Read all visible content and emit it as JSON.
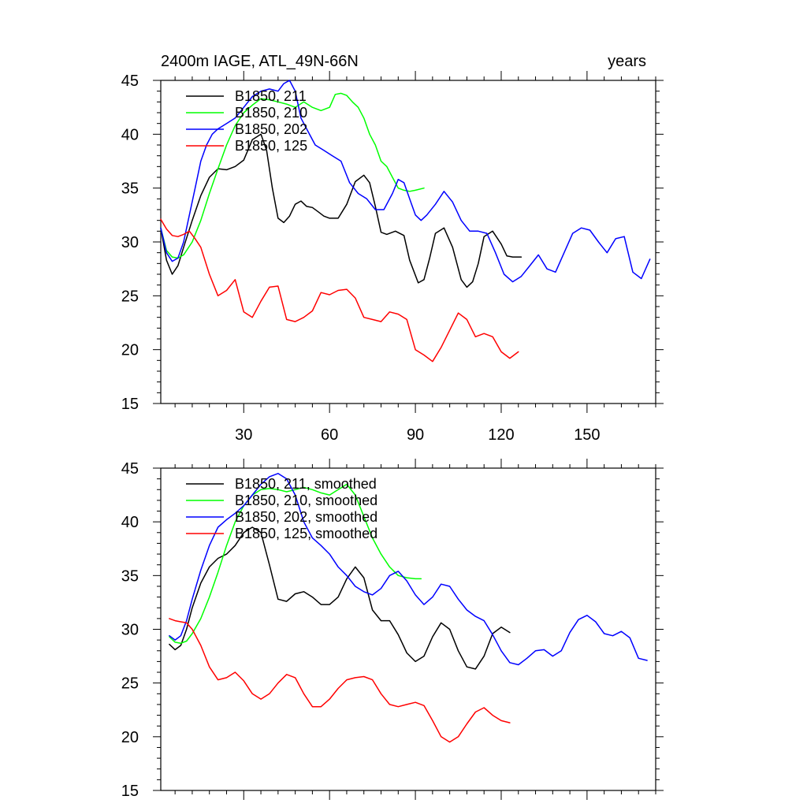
{
  "chart_data": [
    {
      "type": "line",
      "title": "2400m IAGE, ATL_49N-66N",
      "right_title": "years",
      "xlabel": "",
      "ylabel": "",
      "xlim": [
        1,
        174
      ],
      "ylim": [
        15,
        45
      ],
      "xticks": [
        30,
        60,
        90,
        120,
        150
      ],
      "yticks": [
        15,
        20,
        25,
        30,
        35,
        40,
        45
      ],
      "legend_position": "top-left",
      "grid": false,
      "series": [
        {
          "name": "B1850, 211",
          "color": "#000000",
          "x": [
            1,
            3,
            5,
            7,
            9,
            12,
            15,
            18,
            21,
            24,
            27,
            30,
            33,
            36,
            38,
            40,
            42,
            44,
            46,
            48,
            50,
            52,
            54,
            56,
            58,
            60,
            63,
            66,
            69,
            72,
            74,
            76,
            78,
            80,
            83,
            86,
            88,
            91,
            93,
            95,
            97,
            100,
            103,
            106,
            108,
            110,
            112,
            114,
            117,
            120,
            122,
            124,
            127
          ],
          "y": [
            31.3,
            28.3,
            27.0,
            27.8,
            29.5,
            32.0,
            34.3,
            36.0,
            36.8,
            36.7,
            37.0,
            37.6,
            39.5,
            40.0,
            38.5,
            35.0,
            32.2,
            31.8,
            32.4,
            33.5,
            33.8,
            33.3,
            33.2,
            32.8,
            32.4,
            32.2,
            32.2,
            33.5,
            35.6,
            36.2,
            35.5,
            33.3,
            30.9,
            30.7,
            31.0,
            30.6,
            28.3,
            26.2,
            26.5,
            28.5,
            30.8,
            31.3,
            29.5,
            26.5,
            25.8,
            26.3,
            28.0,
            30.5,
            31.0,
            29.8,
            28.7,
            28.6,
            28.6
          ]
        },
        {
          "name": "B1850, 210",
          "color": "#00ff00",
          "x": [
            1,
            3,
            5,
            7,
            9,
            12,
            15,
            18,
            21,
            24,
            27,
            30,
            33,
            36,
            39,
            42,
            45,
            48,
            51,
            54,
            57,
            60,
            62,
            64,
            66,
            68,
            70,
            72,
            74,
            76,
            78,
            80,
            82,
            84,
            86,
            88,
            90,
            93
          ],
          "y": [
            31.3,
            29.2,
            28.6,
            28.5,
            28.8,
            30.0,
            32.0,
            34.5,
            36.8,
            39.0,
            40.8,
            42.0,
            42.7,
            43.3,
            43.2,
            43.0,
            42.8,
            42.5,
            43.0,
            42.5,
            42.2,
            42.5,
            43.7,
            43.8,
            43.6,
            43.0,
            42.5,
            41.5,
            40.0,
            39.0,
            37.5,
            37.0,
            36.0,
            35.0,
            34.8,
            34.7,
            34.8,
            35.0
          ]
        },
        {
          "name": "B1850, 202",
          "color": "#0000ff",
          "x": [
            1,
            3,
            5,
            7,
            9,
            11,
            13,
            15,
            17,
            19,
            21,
            24,
            27,
            30,
            33,
            36,
            39,
            42,
            44,
            46,
            48,
            50,
            52,
            55,
            58,
            61,
            64,
            67,
            70,
            73,
            76,
            79,
            82,
            84,
            86,
            88,
            90,
            92,
            94,
            97,
            100,
            103,
            106,
            109,
            112,
            115,
            118,
            121,
            124,
            127,
            130,
            133,
            136,
            139,
            142,
            145,
            148,
            151,
            154,
            157,
            160,
            163,
            166,
            169,
            172
          ],
          "y": [
            31.3,
            29.0,
            28.2,
            28.5,
            30.0,
            32.5,
            35.0,
            37.5,
            39.0,
            40.0,
            40.5,
            41.0,
            41.5,
            42.5,
            43.5,
            44.0,
            44.2,
            44.0,
            44.7,
            45.0,
            44.0,
            41.5,
            40.5,
            39.0,
            38.5,
            38.0,
            37.5,
            35.5,
            34.5,
            34.0,
            33.0,
            33.0,
            34.5,
            35.8,
            35.5,
            34.0,
            32.5,
            32.0,
            32.5,
            33.5,
            34.7,
            33.7,
            32.0,
            31.0,
            31.0,
            30.8,
            29.0,
            27.0,
            26.3,
            26.8,
            27.8,
            28.8,
            27.5,
            27.2,
            29.0,
            30.8,
            31.3,
            31.1,
            30.0,
            29.0,
            30.3,
            30.5,
            27.2,
            26.6,
            28.4
          ]
        },
        {
          "name": "B1850, 125",
          "color": "#ff0000",
          "x": [
            1,
            3,
            5,
            7,
            9,
            11,
            13,
            15,
            18,
            21,
            24,
            27,
            30,
            33,
            36,
            39,
            42,
            45,
            48,
            51,
            54,
            57,
            60,
            63,
            66,
            69,
            72,
            75,
            78,
            81,
            84,
            87,
            90,
            93,
            96,
            99,
            102,
            105,
            108,
            111,
            114,
            117,
            120,
            123,
            126
          ],
          "y": [
            32.1,
            31.2,
            30.6,
            30.5,
            30.7,
            31.0,
            30.3,
            29.5,
            27.0,
            25.0,
            25.5,
            26.5,
            23.5,
            23.0,
            24.5,
            25.8,
            25.9,
            22.8,
            22.6,
            23.0,
            23.6,
            25.3,
            25.1,
            25.5,
            25.6,
            24.8,
            23.0,
            22.8,
            22.6,
            23.5,
            23.3,
            22.8,
            20.0,
            19.5,
            18.9,
            20.2,
            21.8,
            23.4,
            22.8,
            21.2,
            21.5,
            21.2,
            19.8,
            19.2,
            19.8
          ]
        }
      ]
    },
    {
      "type": "line",
      "title": "",
      "xlabel": "",
      "ylabel": "",
      "xlim": [
        1,
        174
      ],
      "ylim": [
        15,
        45
      ],
      "xticks": [
        30,
        60,
        90,
        120,
        150
      ],
      "yticks": [
        15,
        20,
        25,
        30,
        35,
        40,
        45
      ],
      "legend_position": "top-left",
      "grid": false,
      "series": [
        {
          "name": "B1850, 211, smoothed",
          "color": "#000000",
          "x": [
            4,
            6,
            8,
            10,
            12,
            15,
            18,
            21,
            24,
            27,
            30,
            33,
            36,
            39,
            42,
            45,
            48,
            51,
            54,
            57,
            60,
            63,
            66,
            69,
            72,
            75,
            78,
            81,
            84,
            87,
            90,
            93,
            96,
            99,
            102,
            105,
            108,
            111,
            114,
            117,
            120,
            123
          ],
          "y": [
            28.6,
            28.1,
            28.5,
            30.0,
            32.0,
            34.3,
            35.8,
            36.6,
            37.0,
            37.8,
            39.0,
            39.5,
            39.0,
            36.0,
            32.8,
            32.6,
            33.3,
            33.5,
            33.0,
            32.3,
            32.3,
            33.0,
            34.7,
            35.8,
            34.8,
            31.8,
            30.8,
            30.8,
            29.5,
            27.8,
            27.0,
            27.5,
            29.3,
            30.6,
            30.0,
            28.0,
            26.5,
            26.3,
            27.5,
            29.6,
            30.2,
            29.7
          ]
        },
        {
          "name": "B1850, 210, smoothed",
          "color": "#00ff00",
          "x": [
            4,
            6,
            8,
            10,
            12,
            15,
            18,
            21,
            24,
            27,
            30,
            33,
            36,
            39,
            42,
            45,
            48,
            51,
            54,
            57,
            60,
            63,
            66,
            69,
            72,
            75,
            78,
            81,
            84,
            87,
            90,
            92
          ],
          "y": [
            29.3,
            28.8,
            28.7,
            28.9,
            29.6,
            31.0,
            33.0,
            35.3,
            37.8,
            40.0,
            41.5,
            42.5,
            43.0,
            43.1,
            43.0,
            42.8,
            43.0,
            43.2,
            43.0,
            42.7,
            42.5,
            43.0,
            43.5,
            42.5,
            40.5,
            38.5,
            37.0,
            35.8,
            35.0,
            34.8,
            34.7,
            34.7
          ]
        },
        {
          "name": "B1850, 202, smoothed",
          "color": "#0000ff",
          "x": [
            4,
            6,
            8,
            10,
            12,
            15,
            18,
            21,
            24,
            27,
            30,
            33,
            36,
            39,
            42,
            45,
            48,
            51,
            54,
            57,
            60,
            63,
            66,
            69,
            72,
            75,
            78,
            81,
            84,
            87,
            90,
            93,
            96,
            99,
            102,
            105,
            108,
            111,
            114,
            117,
            120,
            123,
            126,
            129,
            132,
            135,
            138,
            141,
            144,
            147,
            150,
            153,
            156,
            159,
            162,
            165,
            168,
            171
          ],
          "y": [
            29.4,
            29.0,
            29.4,
            30.8,
            32.8,
            35.5,
            37.8,
            39.5,
            40.2,
            40.8,
            41.5,
            42.5,
            43.5,
            44.2,
            44.5,
            44.0,
            42.5,
            40.0,
            38.5,
            37.8,
            37.0,
            35.8,
            35.0,
            34.0,
            33.5,
            33.2,
            33.8,
            35.0,
            35.4,
            34.5,
            33.2,
            32.3,
            33.0,
            34.2,
            34.0,
            32.8,
            31.8,
            31.2,
            30.8,
            29.5,
            28.0,
            26.9,
            26.7,
            27.3,
            28.0,
            28.1,
            27.5,
            28.0,
            29.7,
            30.9,
            31.3,
            30.7,
            29.6,
            29.4,
            29.8,
            29.2,
            27.3,
            27.1
          ]
        },
        {
          "name": "B1850, 125, smoothed",
          "color": "#ff0000",
          "x": [
            4,
            6,
            8,
            10,
            12,
            15,
            18,
            21,
            24,
            27,
            30,
            33,
            36,
            39,
            42,
            45,
            48,
            51,
            54,
            57,
            60,
            63,
            66,
            69,
            72,
            75,
            78,
            81,
            84,
            87,
            90,
            93,
            96,
            99,
            102,
            105,
            108,
            111,
            114,
            117,
            120,
            123
          ],
          "y": [
            31.0,
            30.8,
            30.7,
            30.6,
            30.0,
            28.5,
            26.5,
            25.3,
            25.5,
            26.0,
            25.2,
            24.0,
            23.5,
            24.0,
            25.0,
            25.8,
            25.5,
            24.0,
            22.8,
            22.8,
            23.5,
            24.5,
            25.3,
            25.5,
            25.6,
            25.3,
            24.0,
            23.0,
            22.8,
            23.0,
            23.2,
            22.9,
            21.5,
            20.0,
            19.5,
            20.0,
            21.2,
            22.3,
            22.7,
            22.0,
            21.5,
            21.3
          ]
        }
      ]
    }
  ]
}
